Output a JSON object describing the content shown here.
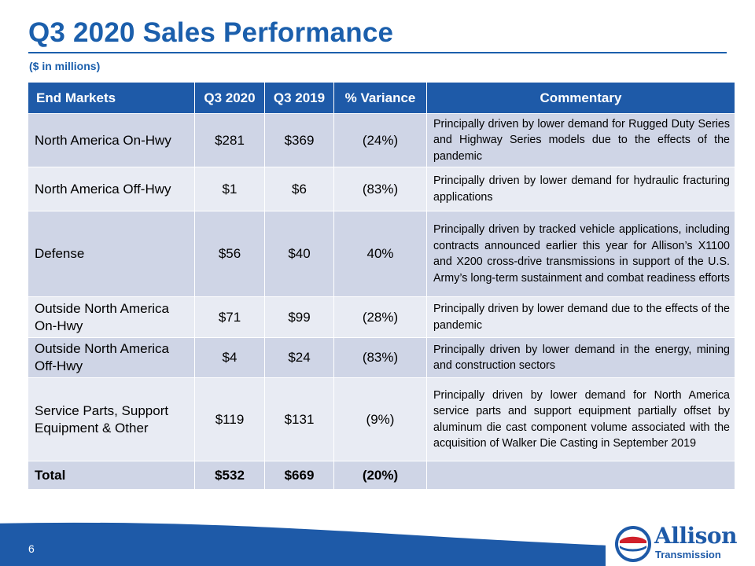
{
  "title": "Q3 2020 Sales Performance",
  "subtitle": "($ in millions)",
  "table": {
    "headers": [
      "End Markets",
      "Q3 2020",
      "Q3 2019",
      "% Variance",
      "Commentary"
    ],
    "rows": [
      [
        "North America On-Hwy",
        "$281",
        "$369",
        "(24%)",
        "Principally driven by lower demand for Rugged Duty Series and Highway Series models due to the effects of the pandemic"
      ],
      [
        "North America Off-Hwy",
        "$1",
        "$6",
        "(83%)",
        "Principally driven by lower demand for hydraulic fracturing applications"
      ],
      [
        "Defense",
        "$56",
        "$40",
        "40%",
        "Principally driven by tracked vehicle applications, including contracts announced earlier this year for Allison’s X1100 and X200 cross-drive transmissions in support of the U.S. Army’s long-term sustainment and combat readiness efforts"
      ],
      [
        "Outside North America On-Hwy",
        "$71",
        "$99",
        "(28%)",
        "Principally driven by lower demand due to the effects of the pandemic"
      ],
      [
        "Outside North America Off-Hwy",
        "$4",
        "$24",
        "(83%)",
        "Principally driven by lower demand in the energy, mining and construction sectors"
      ],
      [
        "Service Parts, Support Equipment & Other",
        "$119",
        "$131",
        "(9%)",
        "Principally driven by lower demand for North America service parts and support equipment partially offset by aluminum die cast component volume associated with the acquisition of Walker Die Casting in September 2019"
      ],
      [
        "Total",
        "$532",
        "$669",
        "(20%)",
        ""
      ]
    ]
  },
  "footer": {
    "page_number": "6",
    "logo_line1": "Allison",
    "logo_line2": "Transmission",
    "bar_color": "#1e5aa8"
  }
}
